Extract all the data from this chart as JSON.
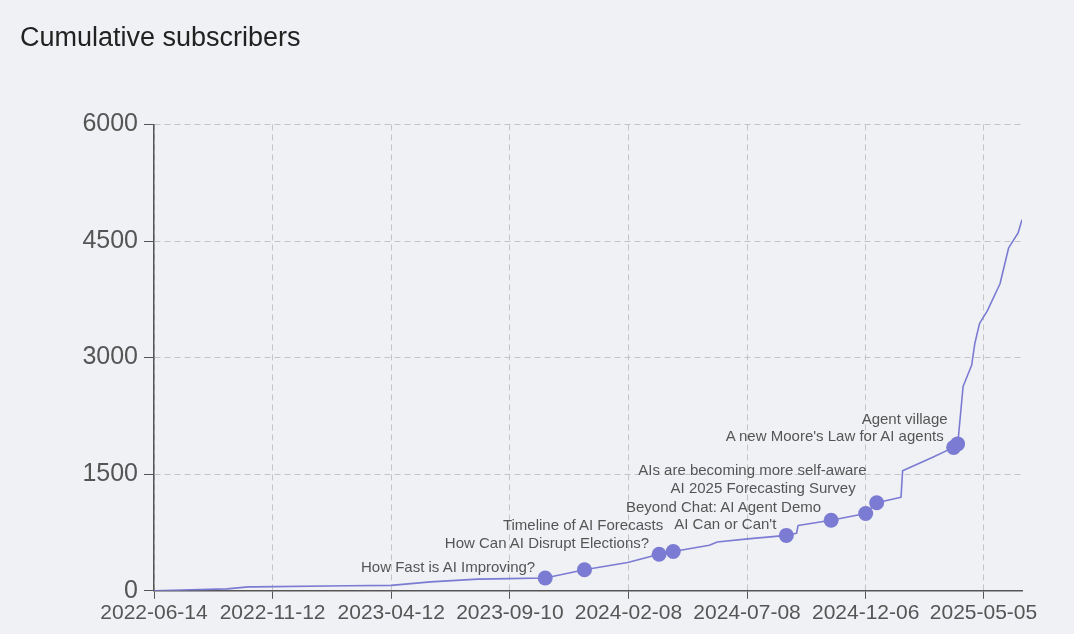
{
  "chart_data": {
    "type": "line",
    "title": "Cumulative subscribers",
    "xlim": [
      "2022-06-14",
      "2025-06-23"
    ],
    "xticks": [
      "2022-06-14",
      "2022-11-12",
      "2023-04-12",
      "2023-09-10",
      "2024-02-08",
      "2024-07-08",
      "2024-12-06",
      "2025-05-05"
    ],
    "ylim": [
      0,
      6000
    ],
    "yticks": [
      0,
      1500,
      3000,
      4500,
      6000
    ],
    "grid": true,
    "legend": false,
    "series": [
      {
        "marker": "none",
        "color": "#7b7bd3",
        "x": [
          "2022-06-14",
          "2022-09-15",
          "2022-10-12",
          "2023-02-16",
          "2023-04-12",
          "2023-06-01",
          "2023-07-31",
          "2023-10-25",
          "2023-12-14",
          "2024-02-07",
          "2024-03-18",
          "2024-04-05",
          "2024-05-21",
          "2024-05-31",
          "2024-07-09",
          "2024-08-27",
          "2024-09-09",
          "2024-09-11",
          "2024-10-23",
          "2024-12-06",
          "2024-12-20",
          "2025-01-20",
          "2025-01-22",
          "2025-02-28",
          "2025-03-28",
          "2025-04-02",
          "2025-04-03",
          "2025-04-09",
          "2025-04-20",
          "2025-04-24",
          "2025-04-30",
          "2025-05-10",
          "2025-05-26",
          "2025-06-06",
          "2025-06-18",
          "2025-06-23"
        ],
        "values": [
          0,
          25,
          50,
          64,
          70,
          115,
          150,
          165,
          270,
          363,
          470,
          505,
          586,
          628,
          668,
          713,
          740,
          840,
          907,
          995,
          1133,
          1204,
          1544,
          1712,
          1845,
          1890,
          1975,
          2628,
          2905,
          3185,
          3440,
          3605,
          3950,
          4412,
          4603,
          4774
        ]
      },
      {
        "type": "scatter",
        "marker": "circle",
        "color": "#7b7bd3",
        "x": [
          "2023-10-25",
          "2023-12-14",
          "2024-03-18",
          "2024-04-05",
          "2024-08-27",
          "2024-10-23",
          "2024-12-06",
          "2024-12-20",
          "2025-03-28",
          "2025-04-02"
        ],
        "values": [
          165,
          270,
          470,
          505,
          713,
          907,
          995,
          1133,
          1845,
          1890
        ]
      }
    ],
    "annotations": [
      {
        "text": "How Fast is AI Improving?",
        "x": "2023-10-25",
        "y": 165
      },
      {
        "text": "How Can AI Disrupt Elections?",
        "x": "2024-03-18",
        "y": 470
      },
      {
        "text": "Timeline of AI Forecasts",
        "x": "2024-04-05",
        "y": 505
      },
      {
        "text": "AI Can or Can't",
        "x": "2024-08-27",
        "y": 713
      },
      {
        "text": "Beyond Chat: AI Agent Demo",
        "x": "2024-10-23",
        "y": 907
      },
      {
        "text": "AI 2025 Forecasting Survey",
        "x": "2024-12-06",
        "y": 995
      },
      {
        "text": "AIs are becoming more self-aware",
        "x": "2024-12-20",
        "y": 1133
      },
      {
        "text": "A new Moore's Law for AI agents",
        "x": "2025-03-28",
        "y": 1845
      },
      {
        "text": "Agent village",
        "x": "2025-04-02",
        "y": 1890
      }
    ]
  }
}
